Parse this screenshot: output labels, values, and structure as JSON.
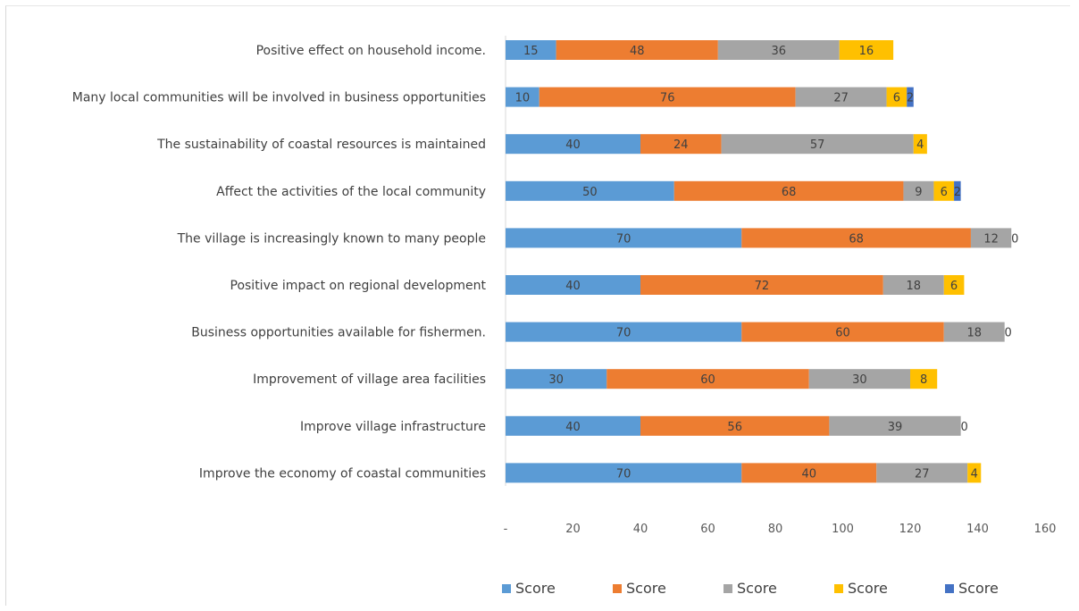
{
  "chart_data": {
    "type": "bar",
    "orientation": "horizontal",
    "stacked": true,
    "categories": [
      "Positive effect on household income.",
      "Many local communities will be involved in business opportunities",
      "The sustainability of coastal resources is maintained",
      "Affect the activities of the local community",
      "The village is  increasingly known to many people",
      "Positive impact on regional development",
      "Business opportunities available for fishermen.",
      "Improvement of village area facilities",
      "Improve village infrastructure",
      "Improve the economy of coastal communities"
    ],
    "series": [
      {
        "name": "Score",
        "color": "#5b9bd5",
        "values": [
          15,
          10,
          40,
          50,
          70,
          40,
          70,
          30,
          40,
          70
        ]
      },
      {
        "name": "Score",
        "color": "#ed7d31",
        "values": [
          48,
          76,
          24,
          68,
          68,
          72,
          60,
          60,
          56,
          40
        ]
      },
      {
        "name": "Score",
        "color": "#a5a5a5",
        "values": [
          36,
          27,
          57,
          9,
          12,
          18,
          18,
          30,
          39,
          27
        ]
      },
      {
        "name": "Score",
        "color": "#ffc000",
        "values": [
          16,
          6,
          4,
          6,
          0,
          6,
          0,
          8,
          0,
          4
        ]
      },
      {
        "name": "Score",
        "color": "#4472c4",
        "values": [
          0,
          2,
          0,
          2,
          0,
          0,
          0,
          0,
          0,
          0
        ]
      }
    ],
    "xticks": [
      "-",
      "20",
      "40",
      "60",
      "80",
      "100",
      "120",
      "140",
      "160"
    ],
    "xlim": [
      0,
      160
    ],
    "grid": false,
    "legend_position": "bottom"
  }
}
